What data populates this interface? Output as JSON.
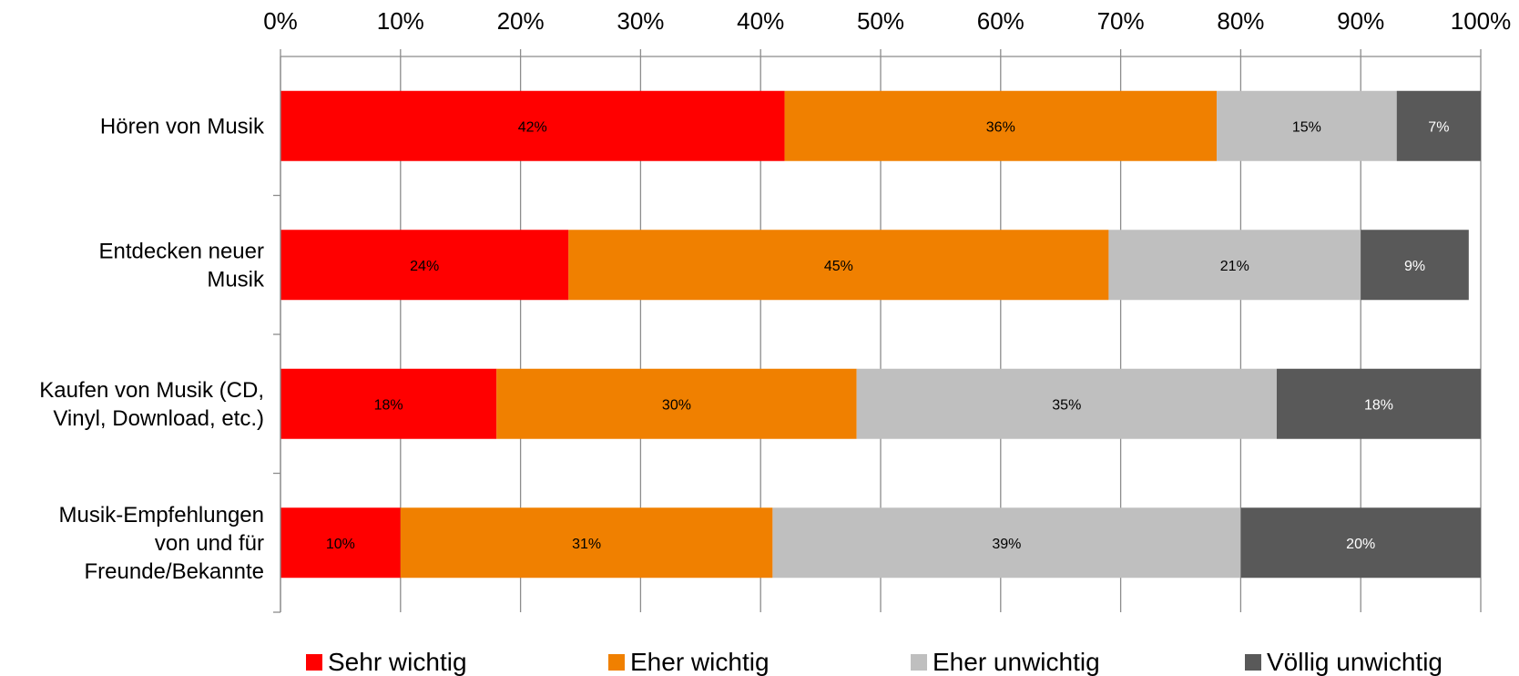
{
  "chart_data": {
    "type": "bar",
    "orientation": "horizontal",
    "stacked": true,
    "categories": [
      [
        "Hören von Musik"
      ],
      [
        "Entdecken neuer",
        "Musik"
      ],
      [
        "Kaufen von Musik (CD,",
        "Vinyl, Download, etc.)"
      ],
      [
        "Musik-Empfehlungen",
        "von und für",
        "Freunde/Bekannte"
      ]
    ],
    "series": [
      {
        "name": "Sehr wichtig",
        "color": "#ff0000",
        "label_color": "#000000",
        "values": [
          42,
          24,
          18,
          10
        ],
        "labels": [
          "42%",
          "24%",
          "18%",
          "10%"
        ]
      },
      {
        "name": "Eher wichtig",
        "color": "#f08000",
        "label_color": "#000000",
        "values": [
          36,
          45,
          30,
          31
        ],
        "labels": [
          "36%",
          "45%",
          "30%",
          "31%"
        ]
      },
      {
        "name": "Eher unwichtig",
        "color": "#bfbfbf",
        "label_color": "#000000",
        "values": [
          15,
          21,
          35,
          39
        ],
        "labels": [
          "15%",
          "21%",
          "35%",
          "39%"
        ]
      },
      {
        "name": "Völlig unwichtig",
        "color": "#595959",
        "label_color": "#ffffff",
        "values": [
          7,
          9,
          18,
          20
        ],
        "labels": [
          "7%",
          "9%",
          "18%",
          "20%"
        ]
      }
    ],
    "xlim": [
      0,
      100
    ],
    "x_ticks": [
      "0%",
      "10%",
      "20%",
      "30%",
      "40%",
      "50%",
      "60%",
      "70%",
      "80%",
      "90%",
      "100%"
    ],
    "x_axis_position": "top",
    "grid": true,
    "legend_position": "bottom"
  }
}
